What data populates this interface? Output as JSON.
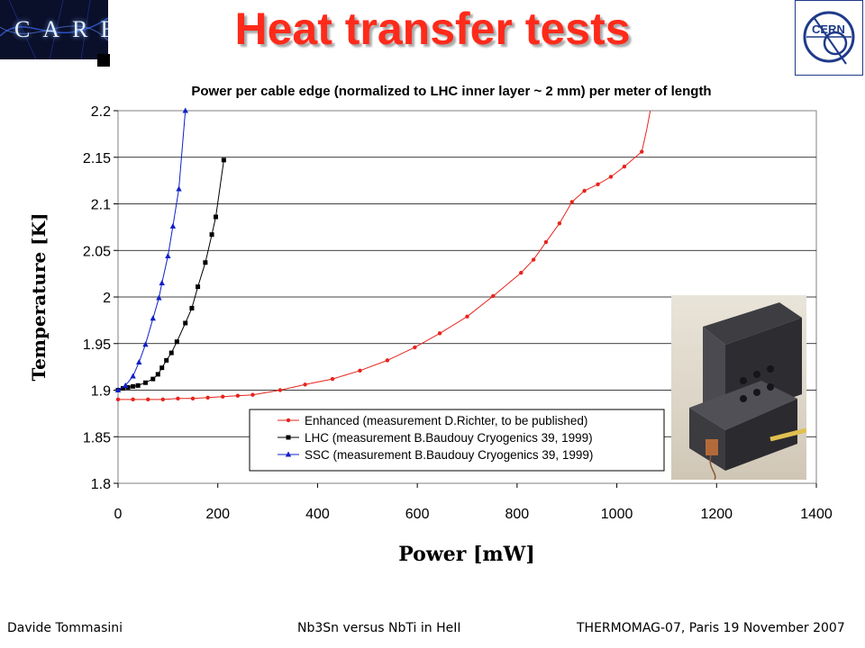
{
  "header": {
    "title": "Heat transfer tests",
    "care_logo_text": "CARE",
    "cern_logo_text": "CERN"
  },
  "footer": {
    "left": "Davide Tommasini",
    "center": "Nb3Sn versus NbTi in HeII",
    "right": "THERMOMAG-07, Paris 19 November 2007"
  },
  "colors": {
    "title": "#ff2a1a",
    "enhanced": "#e8231c",
    "lhc": "#000000",
    "ssc": "#1020c8"
  },
  "chart_data": {
    "type": "scatter",
    "title": "Power per cable edge (normalized to LHC inner layer ~ 2 mm) per meter of length",
    "xlabel": "Power [mW]",
    "ylabel": "Temperature [K]",
    "xlim": [
      0,
      1400
    ],
    "ylim": [
      1.8,
      2.2
    ],
    "x_ticks": [
      "0",
      "200",
      "400",
      "600",
      "800",
      "1000",
      "1200",
      "1400"
    ],
    "y_ticks": [
      "1.8",
      "1.85",
      "1.9",
      "1.95",
      "2",
      "2.05",
      "2.1",
      "2.15",
      "2.2"
    ],
    "grid": "horizontal",
    "legend_position": "bottom-center",
    "series": [
      {
        "name": "Enhanced (measurement D.Richter, to be published)",
        "marker": "circle",
        "points": [
          [
            0,
            1.89
          ],
          [
            30,
            1.89
          ],
          [
            60,
            1.89
          ],
          [
            90,
            1.89
          ],
          [
            120,
            1.891
          ],
          [
            150,
            1.891
          ],
          [
            180,
            1.892
          ],
          [
            210,
            1.893
          ],
          [
            240,
            1.894
          ],
          [
            270,
            1.895
          ],
          [
            325,
            1.9
          ],
          [
            375,
            1.906
          ],
          [
            430,
            1.912
          ],
          [
            485,
            1.921
          ],
          [
            540,
            1.932
          ],
          [
            595,
            1.946
          ],
          [
            645,
            1.961
          ],
          [
            700,
            1.979
          ],
          [
            752,
            2.001
          ],
          [
            808,
            2.026
          ],
          [
            833,
            2.04
          ],
          [
            858,
            2.059
          ],
          [
            885,
            2.079
          ],
          [
            910,
            2.102
          ],
          [
            935,
            2.114
          ],
          [
            962,
            2.121
          ],
          [
            988,
            2.129
          ],
          [
            1015,
            2.14
          ],
          [
            1050,
            2.156
          ],
          [
            1060,
            2.18
          ],
          [
            1067,
            2.2
          ]
        ]
      },
      {
        "name": "LHC (measurement B.Baudouy Cryogenics 39, 1999)",
        "marker": "square",
        "points": [
          [
            0,
            1.9
          ],
          [
            10,
            1.902
          ],
          [
            20,
            1.903
          ],
          [
            30,
            1.904
          ],
          [
            40,
            1.905
          ],
          [
            55,
            1.908
          ],
          [
            70,
            1.912
          ],
          [
            80,
            1.917
          ],
          [
            88,
            1.924
          ],
          [
            97,
            1.932
          ],
          [
            107,
            1.94
          ],
          [
            118,
            1.952
          ],
          [
            135,
            1.972
          ],
          [
            148,
            1.988
          ],
          [
            160,
            2.011
          ],
          [
            175,
            2.037
          ],
          [
            188,
            2.067
          ],
          [
            196,
            2.086
          ],
          [
            212,
            2.147
          ]
        ]
      },
      {
        "name": "SSC (measurement B.Baudouy Cryogenics 39, 1999)",
        "marker": "triangle",
        "points": [
          [
            0,
            1.9
          ],
          [
            15,
            1.905
          ],
          [
            30,
            1.915
          ],
          [
            42,
            1.93
          ],
          [
            55,
            1.949
          ],
          [
            70,
            1.977
          ],
          [
            82,
            1.999
          ],
          [
            88,
            2.015
          ],
          [
            100,
            2.044
          ],
          [
            110,
            2.076
          ],
          [
            122,
            2.116
          ],
          [
            135,
            2.2
          ]
        ]
      }
    ]
  }
}
